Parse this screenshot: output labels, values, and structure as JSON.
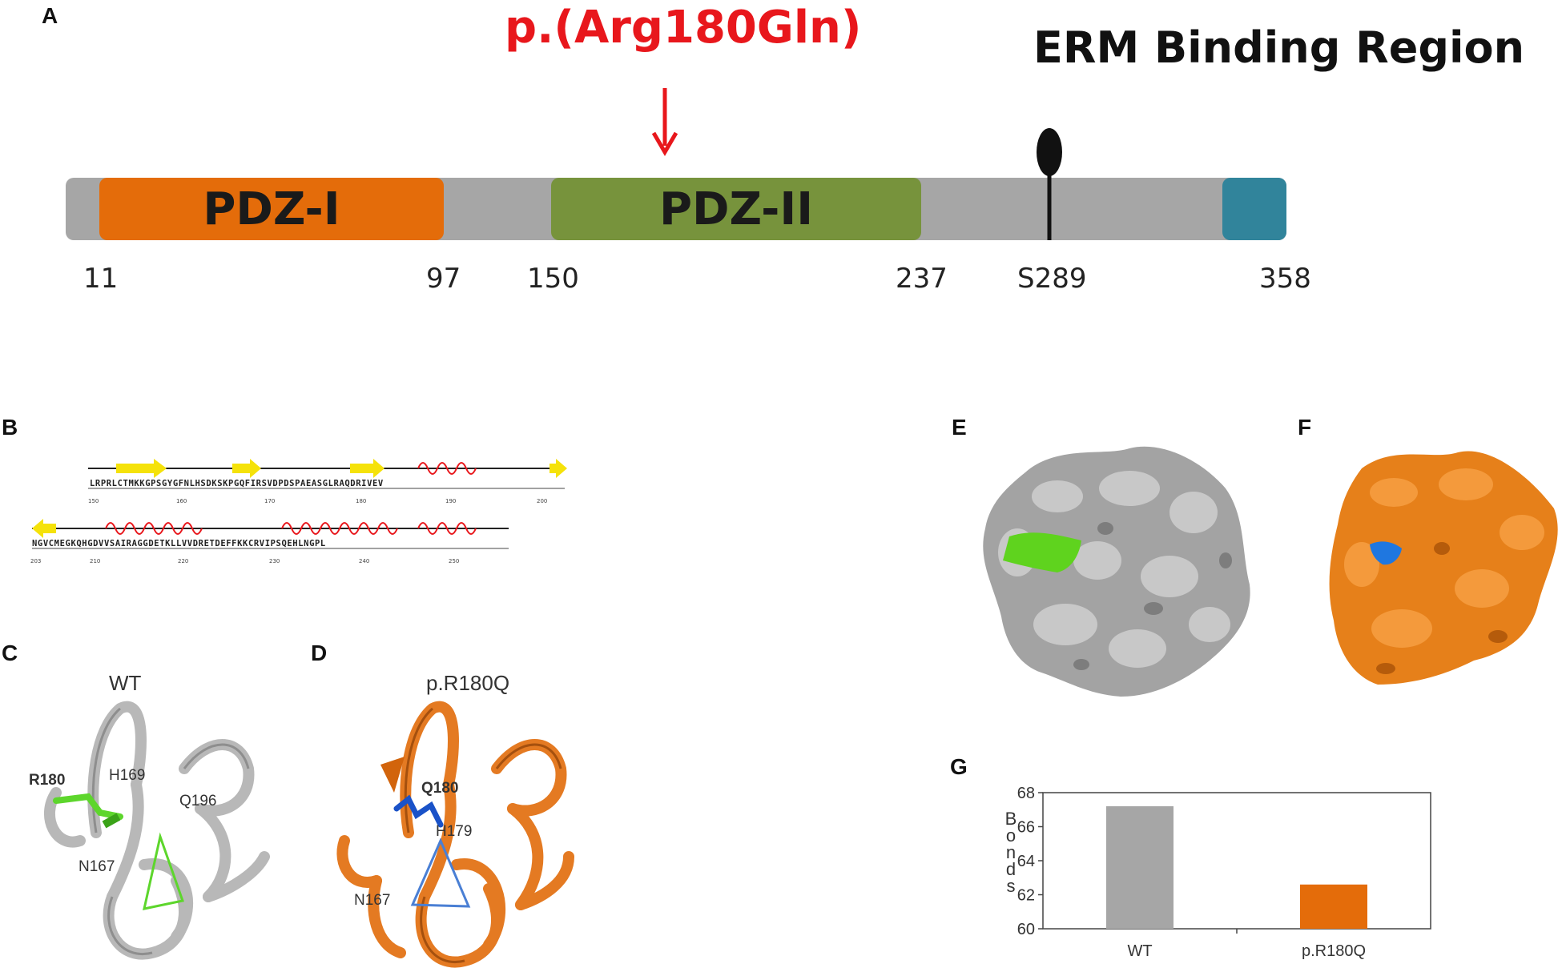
{
  "panels": {
    "a": "A",
    "b": "B",
    "c": "C",
    "d": "D",
    "e": "E",
    "f": "F",
    "g": "G"
  },
  "domain_map": {
    "mutation_label": "p.(Arg180Gln)",
    "erm_label": "ERM Binding Region",
    "pdz1_label": "PDZ-I",
    "pdz2_label": "PDZ-II",
    "positions": [
      "11",
      "97",
      "150",
      "237",
      "S289",
      "358"
    ],
    "colors": {
      "backbone": "#a6a6a6",
      "pdz1": "#e46c0a",
      "pdz2": "#77933c",
      "erm": "#31849b",
      "mutation": "#e8171c"
    }
  },
  "sequence": {
    "line1": "LRPRLCTMKKGPSGYGFNLHSDKSKPGQFIRSVDPDSPAEASGLRAQDRIVEV",
    "line1_ticks": [
      "150",
      "160",
      "170",
      "180",
      "190",
      "200"
    ],
    "line2": "NGVCMEGKQHGDVVSAIRAGGDETKLLVVDRETDEFFKKCRVIPSQEHLNGPL",
    "line2_ticks": [
      "203",
      "210",
      "220",
      "230",
      "240",
      "250"
    ]
  },
  "structures": {
    "wt_title": "WT",
    "mut_title": "p.R180Q",
    "wt_labels": {
      "r180": "R180",
      "h169": "H169",
      "q196": "Q196",
      "n167": "N167"
    },
    "mut_labels": {
      "q180": "Q180",
      "h179": "H179",
      "n167": "N167"
    }
  },
  "chart_data": {
    "type": "bar",
    "categories": [
      "WT",
      "p.R180Q"
    ],
    "values": [
      67.2,
      62.6
    ],
    "ylabel": "Bonds",
    "ylim": [
      60,
      68
    ],
    "yticks": [
      60,
      62,
      64,
      66,
      68
    ],
    "colors": [
      "#a6a6a6",
      "#e46c0a"
    ],
    "grid": false,
    "legend": "none"
  }
}
